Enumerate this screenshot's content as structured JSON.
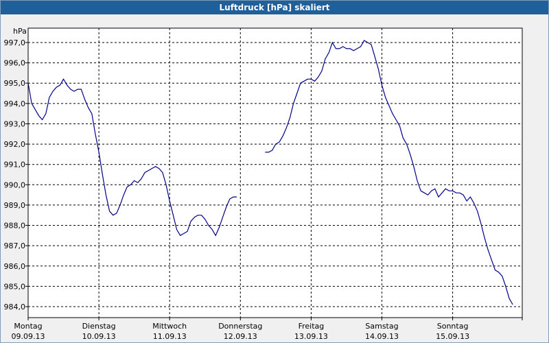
{
  "title": "Luftdruck [hPa] skaliert",
  "chart_data": {
    "type": "line",
    "ylabel": "hPa",
    "ylim": [
      983.8,
      997.5
    ],
    "xlim": [
      0,
      7.0
    ],
    "y_ticks": [
      "997,0",
      "996,0",
      "995,0",
      "994,0",
      "993,0",
      "992,0",
      "991,0",
      "990,0",
      "989,0",
      "988,0",
      "987,0",
      "986,0",
      "985,0",
      "984,0"
    ],
    "x_ticks": [
      {
        "day": "Montag",
        "date": "09.09.13"
      },
      {
        "day": "Dienstag",
        "date": "10.09.13"
      },
      {
        "day": "Mittwoch",
        "date": "11.09.13"
      },
      {
        "day": "Donnerstag",
        "date": "12.09.13"
      },
      {
        "day": "Freitag",
        "date": "13.09.13"
      },
      {
        "day": "Samstag",
        "date": "14.09.13"
      },
      {
        "day": "Sonntag",
        "date": "15.09.13"
      }
    ],
    "grid": true,
    "series": [
      {
        "color": "#00008b",
        "segments": [
          [
            [
              0.0,
              995.0
            ],
            [
              0.05,
              994.0
            ],
            [
              0.1,
              993.7
            ],
            [
              0.15,
              993.4
            ],
            [
              0.2,
              993.2
            ],
            [
              0.25,
              993.5
            ],
            [
              0.3,
              994.3
            ],
            [
              0.35,
              994.6
            ],
            [
              0.4,
              994.8
            ],
            [
              0.45,
              994.9
            ],
            [
              0.5,
              995.2
            ],
            [
              0.55,
              994.9
            ],
            [
              0.6,
              994.7
            ],
            [
              0.65,
              994.6
            ],
            [
              0.7,
              994.7
            ],
            [
              0.75,
              994.7
            ],
            [
              0.8,
              994.2
            ],
            [
              0.85,
              993.8
            ],
            [
              0.9,
              993.5
            ],
            [
              0.95,
              992.5
            ],
            [
              1.0,
              991.6
            ],
            [
              1.05,
              990.5
            ],
            [
              1.1,
              989.5
            ],
            [
              1.15,
              988.7
            ],
            [
              1.2,
              988.5
            ],
            [
              1.25,
              988.6
            ],
            [
              1.3,
              989.0
            ],
            [
              1.35,
              989.5
            ],
            [
              1.4,
              989.9
            ],
            [
              1.45,
              990.0
            ],
            [
              1.5,
              990.2
            ],
            [
              1.55,
              990.1
            ],
            [
              1.6,
              990.3
            ],
            [
              1.65,
              990.6
            ],
            [
              1.7,
              990.7
            ],
            [
              1.75,
              990.8
            ],
            [
              1.8,
              990.9
            ],
            [
              1.85,
              990.8
            ],
            [
              1.9,
              990.6
            ],
            [
              1.95,
              990.0
            ],
            [
              2.0,
              989.2
            ],
            [
              2.05,
              988.5
            ],
            [
              2.1,
              987.8
            ],
            [
              2.15,
              987.5
            ],
            [
              2.2,
              987.6
            ],
            [
              2.25,
              987.7
            ],
            [
              2.3,
              988.2
            ],
            [
              2.35,
              988.4
            ],
            [
              2.4,
              988.5
            ],
            [
              2.45,
              988.5
            ],
            [
              2.5,
              988.3
            ],
            [
              2.55,
              988.0
            ],
            [
              2.6,
              987.8
            ],
            [
              2.65,
              987.5
            ],
            [
              2.7,
              987.9
            ],
            [
              2.75,
              988.4
            ],
            [
              2.8,
              988.9
            ],
            [
              2.85,
              989.3
            ],
            [
              2.9,
              989.4
            ],
            [
              2.95,
              989.4
            ]
          ],
          [
            [
              3.35,
              991.6
            ],
            [
              3.4,
              991.6
            ],
            [
              3.45,
              991.7
            ],
            [
              3.5,
              992.0
            ],
            [
              3.55,
              992.1
            ],
            [
              3.6,
              992.4
            ],
            [
              3.65,
              992.8
            ],
            [
              3.7,
              993.3
            ],
            [
              3.75,
              994.0
            ],
            [
              3.8,
              994.5
            ],
            [
              3.85,
              995.0
            ],
            [
              3.9,
              995.1
            ],
            [
              3.95,
              995.2
            ],
            [
              4.0,
              995.2
            ],
            [
              4.05,
              995.1
            ],
            [
              4.1,
              995.3
            ],
            [
              4.15,
              995.6
            ],
            [
              4.2,
              996.2
            ],
            [
              4.25,
              996.5
            ],
            [
              4.3,
              997.0
            ],
            [
              4.35,
              996.7
            ],
            [
              4.4,
              996.7
            ],
            [
              4.45,
              996.8
            ],
            [
              4.5,
              996.7
            ],
            [
              4.55,
              996.7
            ],
            [
              4.6,
              996.6
            ],
            [
              4.65,
              996.7
            ],
            [
              4.7,
              996.8
            ],
            [
              4.75,
              997.1
            ],
            [
              4.8,
              997.0
            ],
            [
              4.85,
              996.9
            ],
            [
              4.9,
              996.3
            ],
            [
              4.95,
              995.7
            ],
            [
              5.0,
              994.9
            ],
            [
              5.05,
              994.3
            ],
            [
              5.1,
              993.9
            ],
            [
              5.15,
              993.5
            ],
            [
              5.2,
              993.2
            ],
            [
              5.25,
              992.9
            ],
            [
              5.3,
              992.3
            ],
            [
              5.35,
              992.0
            ],
            [
              5.4,
              991.5
            ],
            [
              5.45,
              990.9
            ],
            [
              5.5,
              990.2
            ],
            [
              5.55,
              989.7
            ],
            [
              5.6,
              989.6
            ],
            [
              5.65,
              989.5
            ],
            [
              5.7,
              989.7
            ],
            [
              5.75,
              989.8
            ],
            [
              5.8,
              989.4
            ],
            [
              5.85,
              989.6
            ],
            [
              5.9,
              989.8
            ],
            [
              5.95,
              989.7
            ],
            [
              6.0,
              989.7
            ],
            [
              6.05,
              989.6
            ],
            [
              6.1,
              989.6
            ],
            [
              6.15,
              989.5
            ],
            [
              6.2,
              989.2
            ],
            [
              6.25,
              989.4
            ],
            [
              6.3,
              989.1
            ],
            [
              6.35,
              988.7
            ],
            [
              6.4,
              988.1
            ],
            [
              6.45,
              987.4
            ],
            [
              6.5,
              986.8
            ],
            [
              6.55,
              986.3
            ],
            [
              6.6,
              985.8
            ],
            [
              6.65,
              985.7
            ],
            [
              6.7,
              985.5
            ],
            [
              6.75,
              985.0
            ],
            [
              6.8,
              984.4
            ],
            [
              6.85,
              984.1
            ]
          ]
        ]
      }
    ]
  }
}
